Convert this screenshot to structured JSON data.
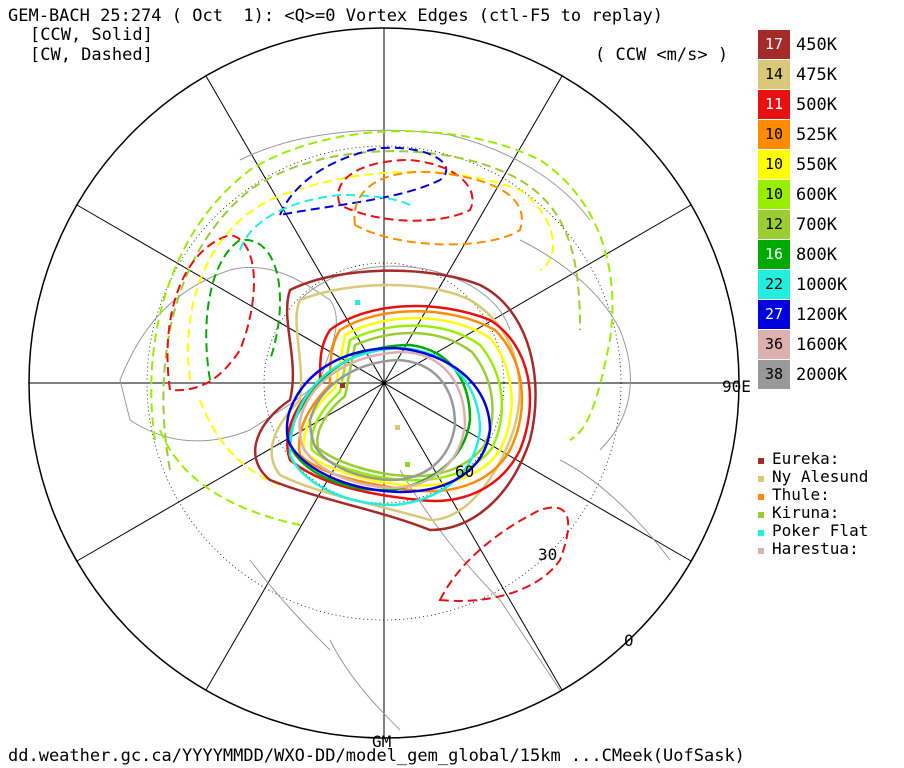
{
  "header": {
    "title": "GEM-BACH 25:274 ( Oct  1): <Q>=0 Vortex Edges (ctl-F5 to replay)",
    "ccw_note": "[CCW, Solid]",
    "cw_note": "[CW, Dashed]",
    "units": "( CCW <m/s> )"
  },
  "legend": [
    {
      "value": "17",
      "level": "450K",
      "color": "#a52a2a",
      "text_color": "#ffffff"
    },
    {
      "value": "14",
      "level": "475K",
      "color": "#d8c878",
      "text_color": "#000000"
    },
    {
      "value": "11",
      "level": "500K",
      "color": "#e81010",
      "text_color": "#ffffff"
    },
    {
      "value": "10",
      "level": "525K",
      "color": "#ff8c00",
      "text_color": "#000000"
    },
    {
      "value": "10",
      "level": "550K",
      "color": "#ffff00",
      "text_color": "#000000"
    },
    {
      "value": "10",
      "level": "600K",
      "color": "#99ee00",
      "text_color": "#000000"
    },
    {
      "value": "12",
      "level": "700K",
      "color": "#9acd32",
      "text_color": "#000000"
    },
    {
      "value": "16",
      "level": "800K",
      "color": "#00aa00",
      "text_color": "#ffffff"
    },
    {
      "value": "22",
      "level": "1000K",
      "color": "#22eedd",
      "text_color": "#000000"
    },
    {
      "value": "27",
      "level": "1200K",
      "color": "#0000dd",
      "text_color": "#ffffff"
    },
    {
      "value": "36",
      "level": "1600K",
      "color": "#ddb0b0",
      "text_color": "#000000"
    },
    {
      "value": "38",
      "level": "2000K",
      "color": "#999999",
      "text_color": "#000000"
    }
  ],
  "sites": [
    {
      "name": "Eureka:",
      "color": "#a52a2a"
    },
    {
      "name": "Ny Alesund",
      "color": "#d8c878"
    },
    {
      "name": "Thule:",
      "color": "#ff8c00"
    },
    {
      "name": "Kiruna:",
      "color": "#9acd32"
    },
    {
      "name": "Poker Flat",
      "color": "#22eedd"
    },
    {
      "name": "Harestua:",
      "color": "#ddb0b0"
    }
  ],
  "axis_labels": {
    "east": "90E",
    "lat60": "60",
    "lat30": "30",
    "lat0": "0",
    "gm": "GM"
  },
  "footer": "dd.weather.gc.ca/YYYYMMDD/WXO-DD/model_gem_global/15km ...CMeek(UofSask)"
}
